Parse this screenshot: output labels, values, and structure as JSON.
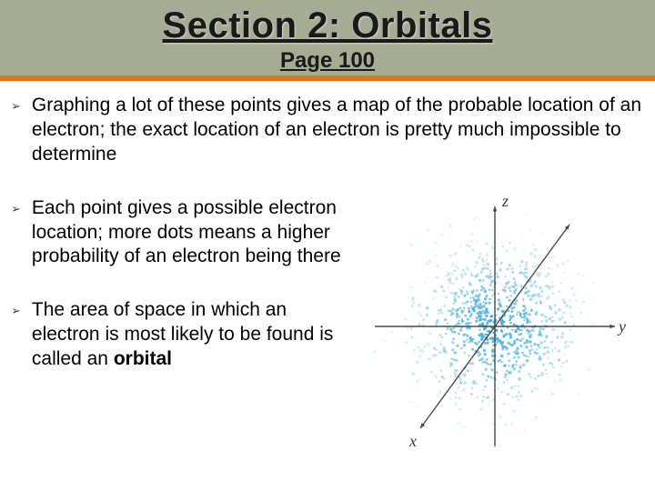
{
  "header": {
    "title": "Section 2: Orbitals",
    "subtitle": "Page 100",
    "bg_color": "#a6ab94",
    "accent_color": "#e8701a"
  },
  "bullets": [
    {
      "text": "Graphing a lot of these points gives a map of the probable location of an electron; the exact location of an electron is pretty much impossible to determine",
      "narrow": false
    },
    {
      "text": "Each point gives a possible electron location; more dots means a higher probability of an electron being there",
      "narrow": true
    },
    {
      "text": "The area of space in which an electron is most likely to be found is called an ",
      "bold_suffix": "orbital",
      "narrow": true
    }
  ],
  "diagram": {
    "type": "scatter-cloud-3d-axes",
    "axis_labels": {
      "x": "x",
      "y": "y",
      "z": "z"
    },
    "axis_color": "#4a4a4a",
    "label_color": "#3a3a3a",
    "label_fontsize": 18,
    "cloud_center_color": "#3fa8d8",
    "cloud_outer_color": "#8fd0e8",
    "background": "#ffffff",
    "point_count": 900,
    "spread_sigma": 42
  }
}
